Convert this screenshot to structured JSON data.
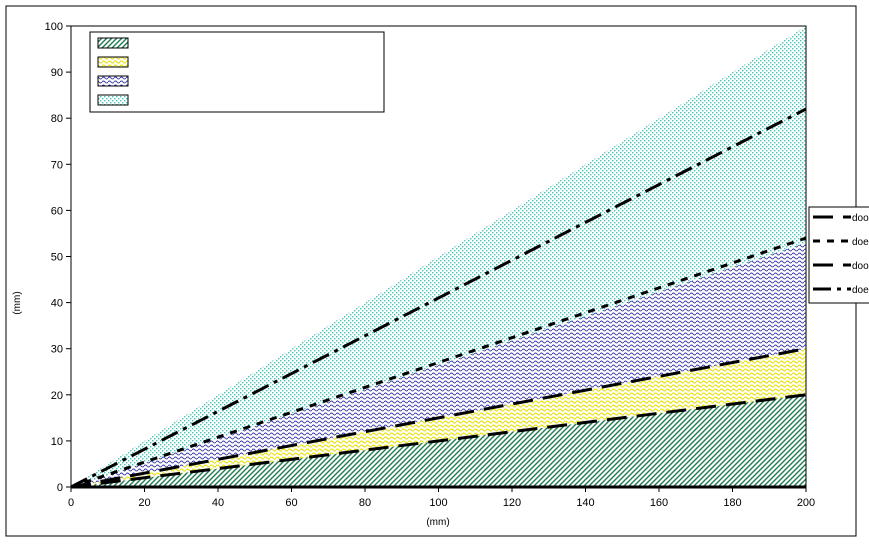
{
  "chart_data": {
    "type": "area",
    "xlabel": "(mm)",
    "ylabel": "(mm)",
    "xlim": [
      0,
      200
    ],
    "ylim": [
      0,
      100
    ],
    "xticks": [
      0,
      20,
      40,
      60,
      80,
      100,
      120,
      140,
      160,
      180,
      200
    ],
    "yticks": [
      0,
      10,
      20,
      30,
      40,
      50,
      60,
      70,
      80,
      90,
      100
    ],
    "grid": false,
    "background_pattern_color": "#b9e3e0",
    "areas": [
      {
        "pattern": "diagonal-hatch",
        "color": "#1f7a4f",
        "x": [
          0,
          200
        ],
        "lower": [
          0,
          0
        ],
        "upper": [
          0,
          20
        ]
      },
      {
        "pattern": "wave-yellow",
        "color": "#f2ef2a",
        "x": [
          0,
          200
        ],
        "lower": [
          0,
          20
        ],
        "upper": [
          0,
          30
        ]
      },
      {
        "pattern": "wave-blue",
        "color": "#3a3aa8",
        "x": [
          0,
          200
        ],
        "lower": [
          0,
          30
        ],
        "upper": [
          0,
          53
        ]
      },
      {
        "pattern": "dots-cyan",
        "color": "#b9e3e0",
        "x": [
          0,
          200
        ],
        "lower": [
          0,
          53
        ],
        "upper": [
          0,
          100
        ]
      }
    ],
    "area_legend_placement": "top-left",
    "lines": [
      {
        "name": "doo",
        "style": "long-dash",
        "x": [
          0,
          200
        ],
        "y": [
          0,
          20
        ]
      },
      {
        "name": "doe",
        "style": "short-dash",
        "x": [
          0,
          200
        ],
        "y": [
          0,
          54
        ]
      },
      {
        "name": "doo",
        "style": "long-dash",
        "x": [
          0,
          200
        ],
        "y": [
          0,
          30
        ]
      },
      {
        "name": "doe",
        "style": "dash-dot",
        "x": [
          0,
          200
        ],
        "y": [
          0,
          82
        ]
      }
    ],
    "line_legend_placement": "right"
  }
}
